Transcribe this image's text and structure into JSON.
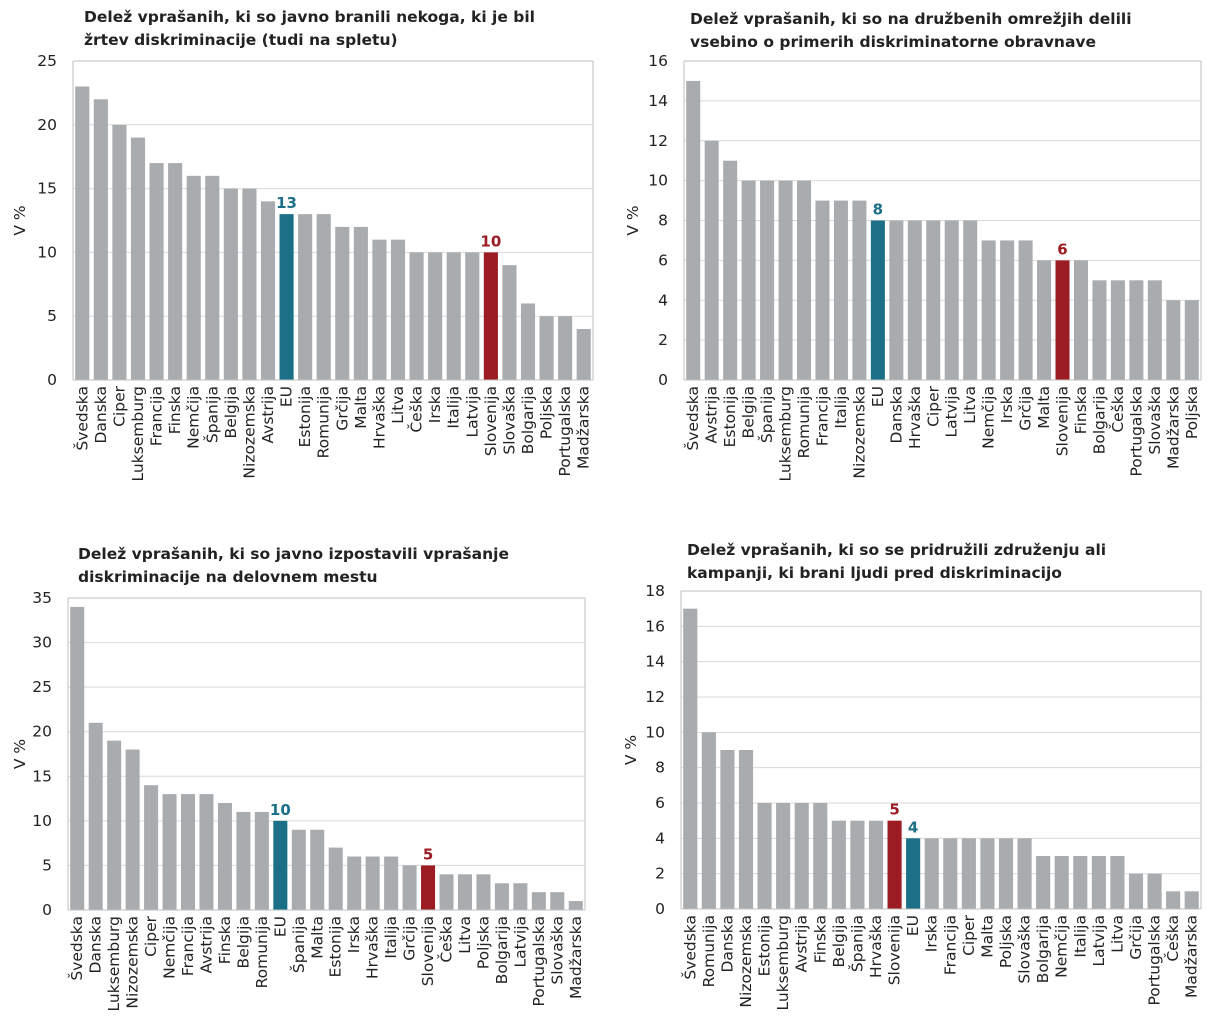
{
  "colors": {
    "bar": "#a8acaf",
    "eu": "#1b6f87",
    "slovenia": "#9b1c22",
    "grid": "#d9d9d9",
    "axis": "#bfbfbf"
  },
  "chart_data": [
    {
      "type": "bar",
      "title_lines": [
        "Delež vprašanih, ki so javno branili nekoga, ki je bil",
        "žrtev diskriminacije (tudi na spletu)"
      ],
      "ylabel": "V %",
      "ylim": [
        0,
        25
      ],
      "yticks": [
        0,
        5,
        10,
        15,
        20,
        25
      ],
      "categories": [
        "Švedska",
        "Danska",
        "Ciper",
        "Luksemburg",
        "Francija",
        "Finska",
        "Nemčija",
        "Španija",
        "Belgija",
        "Nizozemska",
        "Avstrija",
        "EU",
        "Estonija",
        "Romunija",
        "Grčija",
        "Malta",
        "Hrvaška",
        "Litva",
        "Češka",
        "Irska",
        "Italija",
        "Latvija",
        "Slovenija",
        "Slovaška",
        "Bolgarija",
        "Poljska",
        "Portugalska",
        "Madžarska"
      ],
      "values": [
        23,
        22,
        20,
        19,
        17,
        17,
        16,
        16,
        15,
        15,
        14,
        13,
        13,
        13,
        12,
        12,
        11,
        11,
        10,
        10,
        10,
        10,
        10,
        9,
        6,
        5,
        5,
        4
      ],
      "highlights": [
        {
          "category": "EU",
          "label": "13",
          "color": "eu"
        },
        {
          "category": "Slovenija",
          "label": "10",
          "color": "slovenia"
        }
      ],
      "grid": true
    },
    {
      "type": "bar",
      "title_lines": [
        "Delež vprašanih, ki so na družbenih omrežjih delili",
        "vsebino o primerih diskriminatorne obravnave"
      ],
      "ylabel": "V %",
      "ylim": [
        0,
        16
      ],
      "yticks": [
        0,
        2,
        4,
        6,
        8,
        10,
        12,
        14,
        16
      ],
      "categories": [
        "Švedska",
        "Avstrija",
        "Estonija",
        "Belgija",
        "Španija",
        "Luksemburg",
        "Romunija",
        "Francija",
        "Italija",
        "Nizozemska",
        "EU",
        "Danska",
        "Hrvaška",
        "Ciper",
        "Latvija",
        "Litva",
        "Nemčija",
        "Irska",
        "Grčija",
        "Malta",
        "Slovenija",
        "Finska",
        "Bolgarija",
        "Češka",
        "Portugalska",
        "Slovaška",
        "Madžarska",
        "Poljska"
      ],
      "values": [
        15,
        12,
        11,
        10,
        10,
        10,
        10,
        9,
        9,
        9,
        8,
        8,
        8,
        8,
        8,
        8,
        7,
        7,
        7,
        6,
        6,
        6,
        5,
        5,
        5,
        5,
        4,
        4
      ],
      "highlights": [
        {
          "category": "EU",
          "label": "8",
          "color": "eu"
        },
        {
          "category": "Slovenija",
          "label": "6",
          "color": "slovenia"
        }
      ],
      "grid": true
    },
    {
      "type": "bar",
      "title_lines": [
        "Delež vprašanih, ki so javno izpostavili vprašanje",
        "diskriminacije na delovnem mestu"
      ],
      "ylabel": "V %",
      "ylim": [
        0,
        35
      ],
      "yticks": [
        0,
        5,
        10,
        15,
        20,
        25,
        30,
        35
      ],
      "categories": [
        "Švedska",
        "Danska",
        "Luksemburg",
        "Nizozemska",
        "Ciper",
        "Nemčija",
        "Francija",
        "Avstrija",
        "Finska",
        "Belgija",
        "Romunija",
        "EU",
        "Španija",
        "Malta",
        "Estonija",
        "Irska",
        "Hrvaška",
        "Italija",
        "Grčija",
        "Slovenija",
        "Češka",
        "Litva",
        "Poljska",
        "Bolgarija",
        "Latvija",
        "Portugalska",
        "Slovaška",
        "Madžarska"
      ],
      "values": [
        34,
        21,
        19,
        18,
        14,
        13,
        13,
        13,
        12,
        11,
        11,
        10,
        9,
        9,
        7,
        6,
        6,
        6,
        5,
        5,
        4,
        4,
        4,
        3,
        3,
        2,
        2,
        1
      ],
      "highlights": [
        {
          "category": "EU",
          "label": "10",
          "color": "eu"
        },
        {
          "category": "Slovenija",
          "label": "5",
          "color": "slovenia"
        }
      ],
      "grid": true
    },
    {
      "type": "bar",
      "title_lines": [
        "Delež vprašanih, ki so se pridružili združenju ali",
        "kampanji, ki brani ljudi pred diskriminacijo"
      ],
      "ylabel": "V %",
      "ylim": [
        0,
        18
      ],
      "yticks": [
        0,
        2,
        4,
        6,
        8,
        10,
        12,
        14,
        16,
        18
      ],
      "categories": [
        "Švedska",
        "Romunija",
        "Danska",
        "Nizozemska",
        "Estonija",
        "Luksemburg",
        "Avstrija",
        "Finska",
        "Belgija",
        "Španija",
        "Hrvaška",
        "Slovenija",
        "EU",
        "Irska",
        "Francija",
        "Ciper",
        "Malta",
        "Poljska",
        "Slovaška",
        "Bolgarija",
        "Nemčija",
        "Italija",
        "Latvija",
        "Litva",
        "Grčija",
        "Portugalska",
        "Češka",
        "Madžarska"
      ],
      "values": [
        17,
        10,
        9,
        9,
        6,
        6,
        6,
        6,
        5,
        5,
        5,
        5,
        4,
        4,
        4,
        4,
        4,
        4,
        4,
        3,
        3,
        3,
        3,
        3,
        2,
        2,
        1,
        1
      ],
      "highlights": [
        {
          "category": "Slovenija",
          "label": "5",
          "color": "slovenia"
        },
        {
          "category": "EU",
          "label": "4",
          "color": "eu"
        }
      ],
      "grid": true
    }
  ]
}
